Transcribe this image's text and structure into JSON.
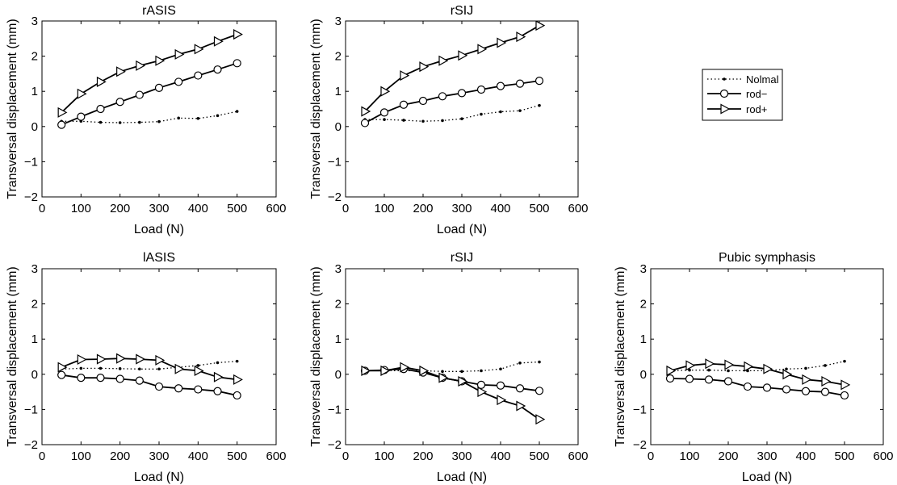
{
  "chart_data": [
    {
      "type": "line",
      "title": "rASIS",
      "xlabel": "Load (N)",
      "ylabel": "Transversal displacement (mm)",
      "xlim": [
        0,
        600
      ],
      "ylim": [
        -2,
        3
      ],
      "x_ticks": [
        0,
        100,
        200,
        300,
        400,
        500,
        600
      ],
      "y_ticks": [
        -2,
        -1,
        0,
        1,
        2,
        3
      ],
      "x": [
        50,
        100,
        150,
        200,
        250,
        300,
        350,
        400,
        450,
        500
      ],
      "series": [
        {
          "name": "Nolmal",
          "values": [
            0.15,
            0.15,
            0.12,
            0.11,
            0.12,
            0.14,
            0.24,
            0.23,
            0.31,
            0.43
          ]
        },
        {
          "name": "rod−",
          "values": [
            0.05,
            0.28,
            0.5,
            0.7,
            0.9,
            1.1,
            1.27,
            1.45,
            1.62,
            1.8
          ]
        },
        {
          "name": "rod+",
          "values": [
            0.4,
            0.93,
            1.27,
            1.56,
            1.73,
            1.87,
            2.05,
            2.2,
            2.42,
            2.62
          ]
        }
      ]
    },
    {
      "type": "line",
      "title": "rSIJ",
      "xlabel": "Load (N)",
      "ylabel": "Transversal displacement (mm)",
      "xlim": [
        0,
        600
      ],
      "ylim": [
        -2,
        3
      ],
      "x_ticks": [
        0,
        100,
        200,
        300,
        400,
        500,
        600
      ],
      "y_ticks": [
        -2,
        -1,
        0,
        1,
        2,
        3
      ],
      "x": [
        50,
        100,
        150,
        200,
        250,
        300,
        350,
        400,
        450,
        500
      ],
      "series": [
        {
          "name": "Nolmal",
          "values": [
            0.2,
            0.2,
            0.18,
            0.15,
            0.17,
            0.22,
            0.35,
            0.42,
            0.45,
            0.6
          ]
        },
        {
          "name": "rod−",
          "values": [
            0.1,
            0.4,
            0.62,
            0.73,
            0.86,
            0.95,
            1.05,
            1.15,
            1.22,
            1.3
          ]
        },
        {
          "name": "rod+",
          "values": [
            0.43,
            1.0,
            1.45,
            1.7,
            1.87,
            2.02,
            2.2,
            2.38,
            2.55,
            2.87
          ]
        }
      ]
    },
    {
      "type": "line",
      "title": "lASIS",
      "xlabel": "Load (N)",
      "ylabel": "Transversal displacement (mm)",
      "xlim": [
        0,
        600
      ],
      "ylim": [
        -2,
        3
      ],
      "x_ticks": [
        0,
        100,
        200,
        300,
        400,
        500,
        600
      ],
      "y_ticks": [
        -2,
        -1,
        0,
        1,
        2,
        3
      ],
      "x": [
        50,
        100,
        150,
        200,
        250,
        300,
        350,
        400,
        450,
        500
      ],
      "series": [
        {
          "name": "Nolmal",
          "values": [
            0.15,
            0.17,
            0.17,
            0.16,
            0.15,
            0.15,
            0.2,
            0.25,
            0.33,
            0.37
          ]
        },
        {
          "name": "rod−",
          "values": [
            -0.02,
            -0.1,
            -0.1,
            -0.13,
            -0.18,
            -0.35,
            -0.4,
            -0.43,
            -0.48,
            -0.6
          ]
        },
        {
          "name": "rod+",
          "values": [
            0.2,
            0.42,
            0.43,
            0.45,
            0.43,
            0.4,
            0.15,
            0.1,
            -0.08,
            -0.15
          ]
        }
      ]
    },
    {
      "type": "line",
      "title": "rSIJ",
      "xlabel": "Load (N)",
      "ylabel": "Transversal displacement (mm)",
      "xlim": [
        0,
        600
      ],
      "ylim": [
        -2,
        3
      ],
      "x_ticks": [
        0,
        100,
        200,
        300,
        400,
        500,
        600
      ],
      "y_ticks": [
        -2,
        -1,
        0,
        1,
        2,
        3
      ],
      "x": [
        50,
        100,
        150,
        200,
        250,
        300,
        350,
        400,
        450,
        500
      ],
      "series": [
        {
          "name": "Nolmal",
          "values": [
            0.1,
            0.1,
            0.1,
            0.1,
            0.08,
            0.08,
            0.1,
            0.15,
            0.32,
            0.35
          ]
        },
        {
          "name": "rod−",
          "values": [
            0.1,
            0.12,
            0.15,
            0.05,
            -0.1,
            -0.2,
            -0.3,
            -0.32,
            -0.4,
            -0.47
          ]
        },
        {
          "name": "rod+",
          "values": [
            0.1,
            0.1,
            0.2,
            0.1,
            -0.1,
            -0.2,
            -0.5,
            -0.73,
            -0.9,
            -1.28
          ]
        }
      ]
    },
    {
      "type": "line",
      "title": "Pubic symphasis",
      "xlabel": "Load (N)",
      "ylabel": "Transversal displacement (mm)",
      "xlim": [
        0,
        600
      ],
      "ylim": [
        -2,
        3
      ],
      "x_ticks": [
        0,
        100,
        200,
        300,
        400,
        500,
        600
      ],
      "y_ticks": [
        -2,
        -1,
        0,
        1,
        2,
        3
      ],
      "x": [
        50,
        100,
        150,
        200,
        250,
        300,
        350,
        400,
        450,
        500
      ],
      "series": [
        {
          "name": "Nolmal",
          "values": [
            0.1,
            0.12,
            0.12,
            0.1,
            0.1,
            0.1,
            0.15,
            0.17,
            0.25,
            0.37
          ]
        },
        {
          "name": "rod−",
          "values": [
            -0.12,
            -0.13,
            -0.15,
            -0.2,
            -0.35,
            -0.38,
            -0.43,
            -0.48,
            -0.5,
            -0.6
          ]
        },
        {
          "name": "rod+",
          "values": [
            0.1,
            0.25,
            0.3,
            0.27,
            0.22,
            0.15,
            0.0,
            -0.15,
            -0.2,
            -0.3
          ]
        }
      ]
    }
  ],
  "legend": {
    "entries": [
      "Nolmal",
      "rod−",
      "rod+"
    ]
  }
}
